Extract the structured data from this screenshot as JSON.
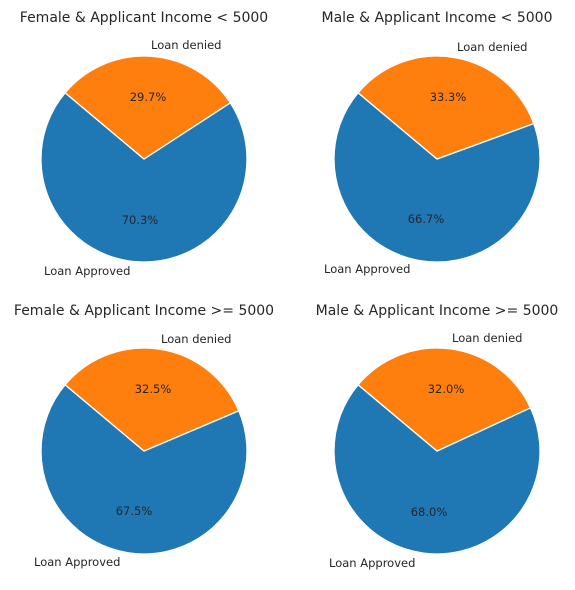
{
  "colors": {
    "approved": "#1f77b4",
    "denied": "#ff7f0e",
    "edge": "#ffffff",
    "text": "#262626"
  },
  "chart_data": [
    {
      "type": "pie",
      "title": "Female & Applicant Income < 5000",
      "labels": [
        "Loan Approved",
        "Loan denied"
      ],
      "values": [
        70.3,
        29.7
      ],
      "value_labels": [
        "70.3%",
        "29.7%"
      ]
    },
    {
      "type": "pie",
      "title": "Male & Applicant Income < 5000",
      "labels": [
        "Loan Approved",
        "Loan denied"
      ],
      "values": [
        66.7,
        33.3
      ],
      "value_labels": [
        "66.7%",
        "33.3%"
      ]
    },
    {
      "type": "pie",
      "title": "Female & Applicant Income >= 5000",
      "labels": [
        "Loan Approved",
        "Loan denied"
      ],
      "values": [
        67.5,
        32.5
      ],
      "value_labels": [
        "67.5%",
        "32.5%"
      ]
    },
    {
      "type": "pie",
      "title": "Male & Applicant Income >= 5000",
      "labels": [
        "Loan Approved",
        "Loan denied"
      ],
      "values": [
        68.0,
        32.0
      ],
      "value_labels": [
        "68.0%",
        "32.0%"
      ]
    }
  ]
}
